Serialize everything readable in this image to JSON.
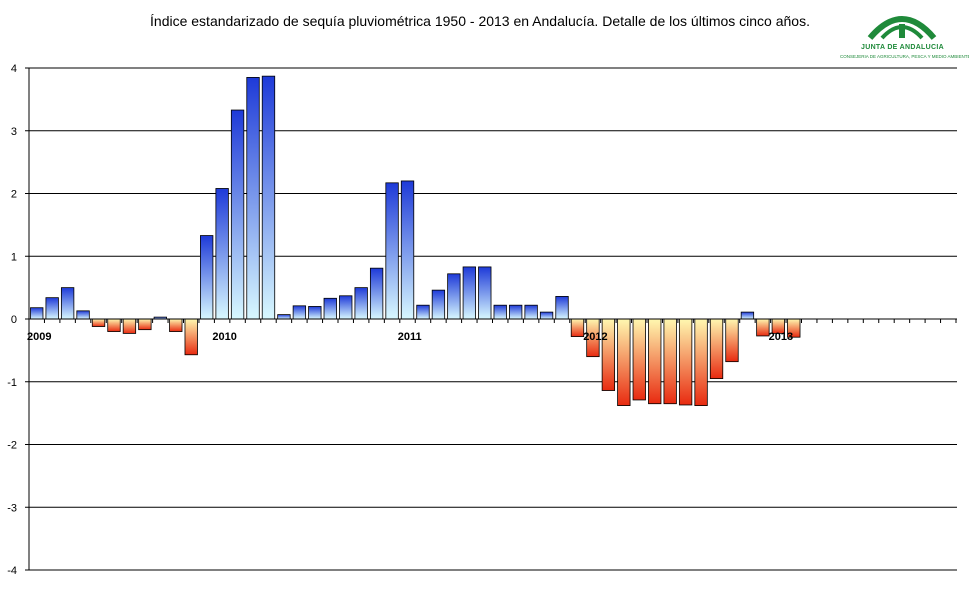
{
  "title": "Índice estandarizado de sequía pluviométrica 1950 - 2013 en Andalucía. Detalle de los últimos cinco años.",
  "logo": {
    "name": "JUNTA DE ANDALUCIA",
    "department": "CONSEJERIA DE AGRICULTURA, PESCA Y MEDIO AMBIENTE",
    "color": "#1f8a3a"
  },
  "chart_data": {
    "type": "bar",
    "title": "Índice estandarizado de sequía pluviométrica 1950 - 2013 en Andalucía. Detalle de los últimos cinco años.",
    "xlabel": "",
    "ylabel": "",
    "ylim": [
      -4,
      4
    ],
    "yticks": [
      "4",
      "3",
      "2",
      "1",
      "0",
      "-1",
      "-2",
      "-3",
      "-4"
    ],
    "year_labels": [
      {
        "label": "2009",
        "index": 0
      },
      {
        "label": "2010",
        "index": 12
      },
      {
        "label": "2011",
        "index": 24
      },
      {
        "label": "2012",
        "index": 36
      },
      {
        "label": "2013",
        "index": 48
      }
    ],
    "grid": true,
    "legend": "none",
    "positive_gradient": [
      "#1e3ad8",
      "#d8f8ff"
    ],
    "negative_gradient": [
      "#fff8b0",
      "#e82a10"
    ],
    "values": [
      0.18,
      0.34,
      0.5,
      0.13,
      -0.12,
      -0.2,
      -0.23,
      -0.17,
      0.03,
      -0.2,
      -0.57,
      1.33,
      2.08,
      3.33,
      3.85,
      3.87,
      0.07,
      0.21,
      0.2,
      0.33,
      0.37,
      0.5,
      0.81,
      2.17,
      2.2,
      0.22,
      0.46,
      0.72,
      0.83,
      0.83,
      0.22,
      0.22,
      0.22,
      0.11,
      0.36,
      -0.28,
      -0.6,
      -1.14,
      -1.38,
      -1.29,
      -1.35,
      -1.35,
      -1.37,
      -1.38,
      -0.95,
      -0.68,
      0.11,
      -0.27,
      -0.23,
      -0.29
    ]
  }
}
